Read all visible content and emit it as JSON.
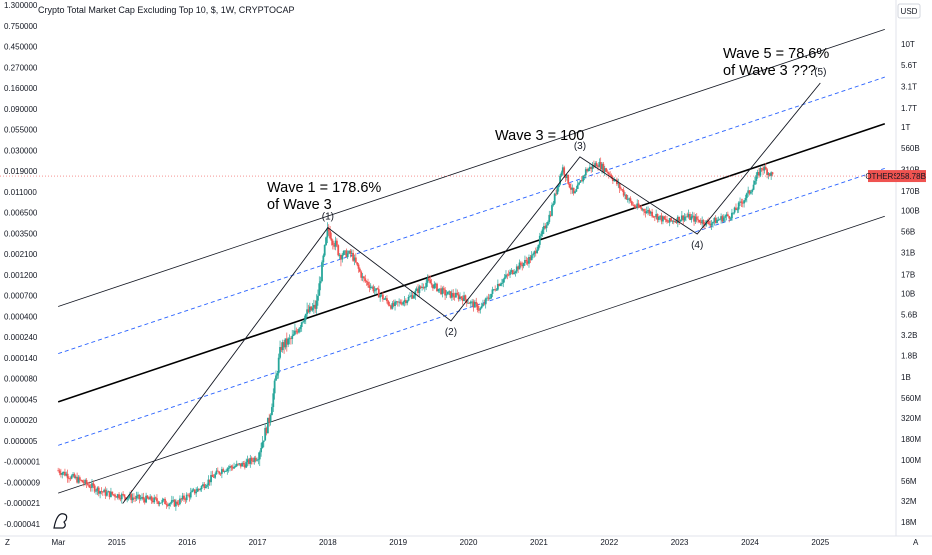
{
  "chart_data": {
    "type": "candlestick",
    "title": "Crypto Total Market Cap Excluding Top 10, $, 1W, CRYPTOCAP",
    "currency_button": "USD",
    "scale": "log",
    "left_axis_labels": [
      "1.300000",
      "0.750000",
      "0.450000",
      "0.270000",
      "0.160000",
      "0.090000",
      "0.055000",
      "0.030000",
      "0.019000",
      "0.011000",
      "0.006500",
      "0.003500",
      "0.002100",
      "0.001200",
      "0.000700",
      "0.000400",
      "0.000240",
      "0.000140",
      "0.000080",
      "0.000045",
      "0.000020",
      "0.000005",
      "-0.000001",
      "-0.000009",
      "-0.000021",
      "-0.000041"
    ],
    "right_axis_labels": [
      "10T",
      "5.6T",
      "3.1T",
      "1.7T",
      "1T",
      "560B",
      "310B",
      "170B",
      "100B",
      "56B",
      "31B",
      "17B",
      "10B",
      "5.6B",
      "3.2B",
      "1.8B",
      "1B",
      "560M",
      "320M",
      "180M",
      "100M",
      "56M",
      "32M",
      "18M"
    ],
    "x_axis_labels": [
      "Mar",
      "2015",
      "2016",
      "2017",
      "2018",
      "2019",
      "2020",
      "2021",
      "2022",
      "2023",
      "2024",
      "2025"
    ],
    "last_price": {
      "symbol": "OTHERS",
      "value": "258.78B"
    },
    "series_colors": {
      "up": "#26a69a",
      "down": "#ef5350"
    },
    "price_path": [
      [
        "2014-03",
        75
      ],
      [
        "2014-07",
        55
      ],
      [
        "2014-11",
        40
      ],
      [
        "2015-03",
        36
      ],
      [
        "2015-07",
        33
      ],
      [
        "2015-11",
        30
      ],
      [
        "2016-03",
        45
      ],
      [
        "2016-07",
        78
      ],
      [
        "2016-11",
        90
      ],
      [
        "2017-01",
        110
      ],
      [
        "2017-03",
        310
      ],
      [
        "2017-05",
        2300
      ],
      [
        "2017-07",
        2900
      ],
      [
        "2017-09",
        5500
      ],
      [
        "2017-11",
        7000
      ],
      [
        "2018-01",
        60000
      ],
      [
        "2018-03",
        30000
      ],
      [
        "2018-05",
        30000
      ],
      [
        "2018-07",
        15000
      ],
      [
        "2018-09",
        11000
      ],
      [
        "2018-12",
        7000
      ],
      [
        "2019-03",
        9000
      ],
      [
        "2019-06",
        14000
      ],
      [
        "2019-09",
        10000
      ],
      [
        "2019-12",
        9000
      ],
      [
        "2020-03",
        6500
      ],
      [
        "2020-06",
        13000
      ],
      [
        "2020-09",
        20000
      ],
      [
        "2020-12",
        28000
      ],
      [
        "2021-03",
        95000
      ],
      [
        "2021-05",
        330000
      ],
      [
        "2021-07",
        150000
      ],
      [
        "2021-09",
        300000
      ],
      [
        "2021-11",
        370000
      ],
      [
        "2022-01",
        280000
      ],
      [
        "2022-05",
        115000
      ],
      [
        "2022-08",
        95000
      ],
      [
        "2022-11",
        72000
      ],
      [
        "2023-02",
        85000
      ],
      [
        "2023-06",
        70000
      ],
      [
        "2023-10",
        90000
      ],
      [
        "2024-01",
        170000
      ],
      [
        "2024-03",
        330000
      ],
      [
        "2024-05",
        258780
      ]
    ],
    "channel_lines": [
      {
        "style": "solid",
        "from": [
          "2014-03",
          7000
        ],
        "to": [
          "2025-12",
          15000000
        ]
      },
      {
        "style": "dashed",
        "from": [
          "2014-03",
          1900
        ],
        "to": [
          "2025-12",
          4000000
        ]
      },
      {
        "style": "bold",
        "from": [
          "2014-03",
          500
        ],
        "to": [
          "2025-12",
          1100000
        ]
      },
      {
        "style": "dashed",
        "from": [
          "2014-03",
          150
        ],
        "to": [
          "2025-12",
          320000
        ]
      },
      {
        "style": "solid",
        "from": [
          "2014-03",
          40
        ],
        "to": [
          "2025-12",
          85000
        ]
      }
    ],
    "wave_path": [
      [
        "2015-02",
        30
      ],
      [
        "2018-01",
        62000
      ],
      [
        "2019-10",
        4700
      ],
      [
        "2021-08",
        440000
      ],
      [
        "2023-04",
        52000
      ],
      [
        "2025-01",
        3400000
      ]
    ],
    "wave_labels": [
      {
        "text": "(1)",
        "at": [
          "2018-01",
          62000
        ]
      },
      {
        "text": "(2)",
        "at": [
          "2019-10",
          4700
        ]
      },
      {
        "text": "(3)",
        "at": [
          "2021-08",
          440000
        ]
      },
      {
        "text": "(4)",
        "at": [
          "2023-04",
          52000
        ]
      },
      {
        "text": "(5)",
        "at": [
          "2025-01",
          3400000
        ]
      }
    ],
    "annotations": [
      {
        "lines": [
          "Wave 1 = 178.6%",
          "of Wave 3"
        ]
      },
      {
        "lines": [
          "Wave 3 = 100"
        ]
      },
      {
        "lines": [
          "Wave 5 = 78.6%",
          "of Wave 3 ???"
        ]
      }
    ],
    "bottom_left_marker": "Z",
    "bottom_right_marker": "A"
  }
}
